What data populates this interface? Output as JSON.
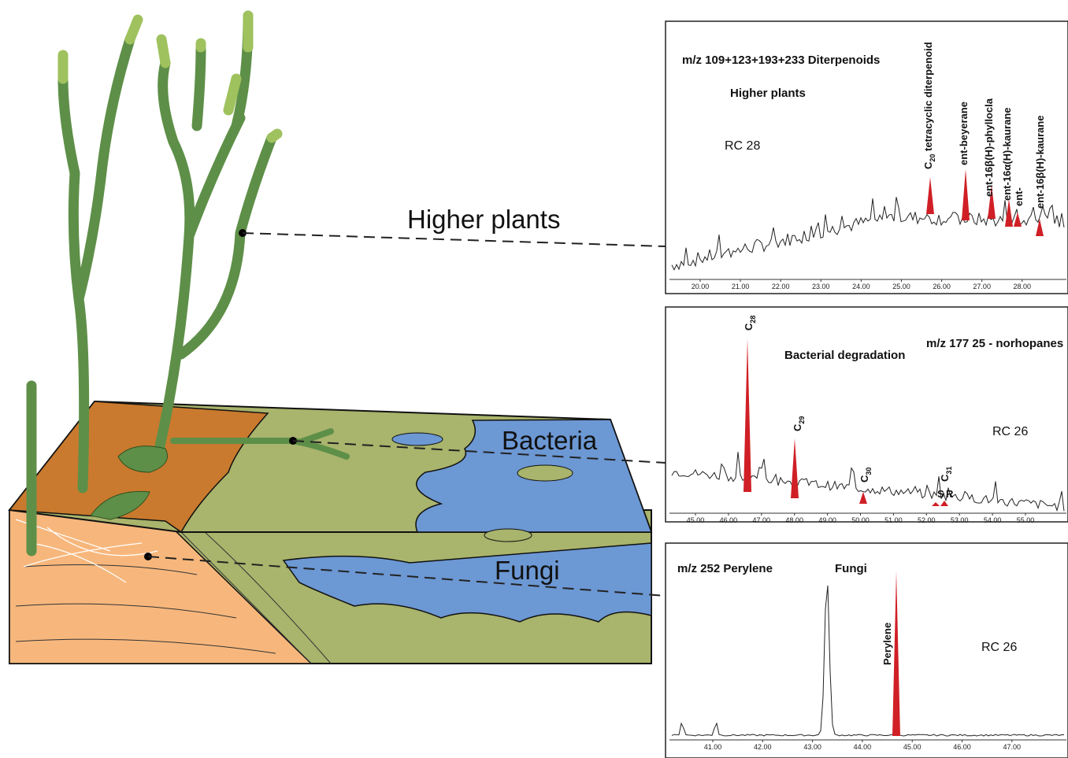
{
  "labels": {
    "higher_plants": "Higher plants",
    "bacteria": "Bacteria",
    "fungi": "Fungi"
  },
  "panels": [
    {
      "title": "m/z 109+123+193+233  Diterpenoids",
      "source": "Higher plants",
      "sample": "RC 28",
      "peaks": [
        {
          "base": "C",
          "sub": "20",
          "rest": " tetracyclic diterpenoid"
        },
        {
          "text": "ent-beyerane"
        },
        {
          "text": "ent-16β(H)-phyllocla"
        },
        {
          "text": "ent-16α(H)-kaurane"
        },
        {
          "text": "ent-"
        },
        {
          "text": "ent-16β(H)-kaurane"
        }
      ],
      "ticks": [
        "20.00",
        "21.00",
        "22.00",
        "23.00",
        "24.00",
        "25.00",
        "26.00",
        "27.00",
        "28.00"
      ]
    },
    {
      "title": "m/z 177  25 - norhopanes",
      "source": "Bacterial degradation",
      "sample": "RC 26",
      "peaks": [
        {
          "base": "C",
          "sub": "28"
        },
        {
          "base": "C",
          "sub": "29"
        },
        {
          "base": "C",
          "sub": "30"
        },
        {
          "text": "S"
        },
        {
          "base": "C",
          "sub": "31"
        },
        {
          "text": "R"
        }
      ],
      "ticks": [
        "45.00",
        "46.00",
        "47.00",
        "48.00",
        "49.00",
        "50.00",
        "51.00",
        "52.00",
        "53.00",
        "54.00",
        "55.00"
      ]
    },
    {
      "title": "m/z 252  Perylene",
      "source": "Fungi",
      "sample": "RC 26",
      "peaks": [
        {
          "text": "Perylene"
        }
      ],
      "ticks": [
        "41.00",
        "42.00",
        "43.00",
        "44.00",
        "45.00",
        "46.00",
        "47.00"
      ]
    }
  ]
}
